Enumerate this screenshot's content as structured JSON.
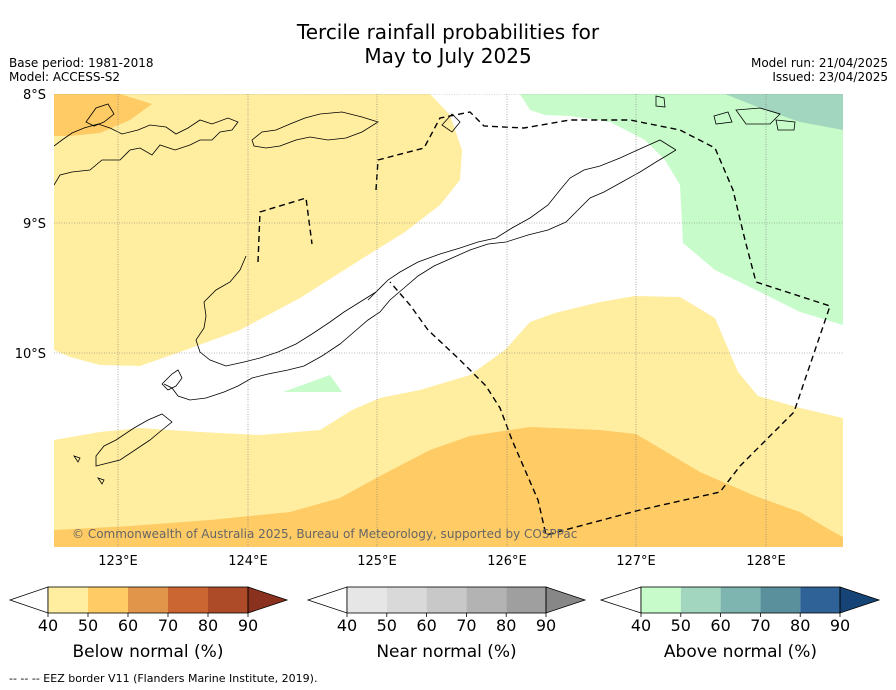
{
  "header": {
    "title_line1": "Tercile rainfall probabilities for",
    "title_line2": "May to July 2025",
    "base_period": "Base period: 1981-2018",
    "model": "Model: ACCESS-S2",
    "model_run": "Model run: 21/04/2025",
    "issued": "Issued: 23/04/2025"
  },
  "map": {
    "lat_ticks": [
      "8°S",
      "9°S",
      "10°S"
    ],
    "lon_ticks": [
      "123°E",
      "124°E",
      "125°E",
      "126°E",
      "127°E",
      "128°E"
    ],
    "copyright": "© Commonwealth of Australia 2025, Bureau of Meteorology, supported by COSPPac"
  },
  "colorbars": [
    {
      "label": "Below normal (%)",
      "ticks": [
        "40",
        "50",
        "60",
        "70",
        "80",
        "90"
      ],
      "colors": [
        "#ffffff",
        "#ffeda0",
        "#fecb65",
        "#e1954b",
        "#cb6633",
        "#ad4a27",
        "#8a311f"
      ]
    },
    {
      "label": "Near normal (%)",
      "ticks": [
        "40",
        "50",
        "60",
        "70",
        "80",
        "90"
      ],
      "colors": [
        "#ffffff",
        "#e6e6e6",
        "#d9d9d9",
        "#c8c8c8",
        "#b3b3b3",
        "#9f9f9f",
        "#878787"
      ]
    },
    {
      "label": "Above normal (%)",
      "ticks": [
        "40",
        "50",
        "60",
        "70",
        "80",
        "90"
      ],
      "colors": [
        "#ffffff",
        "#c7fcca",
        "#a2d6be",
        "#7fb5b1",
        "#5a8f9c",
        "#2f6296",
        "#174476"
      ]
    }
  ],
  "footnote": "--  --  -- EEZ border V11 (Flanders Marine Institute, 2019)."
}
